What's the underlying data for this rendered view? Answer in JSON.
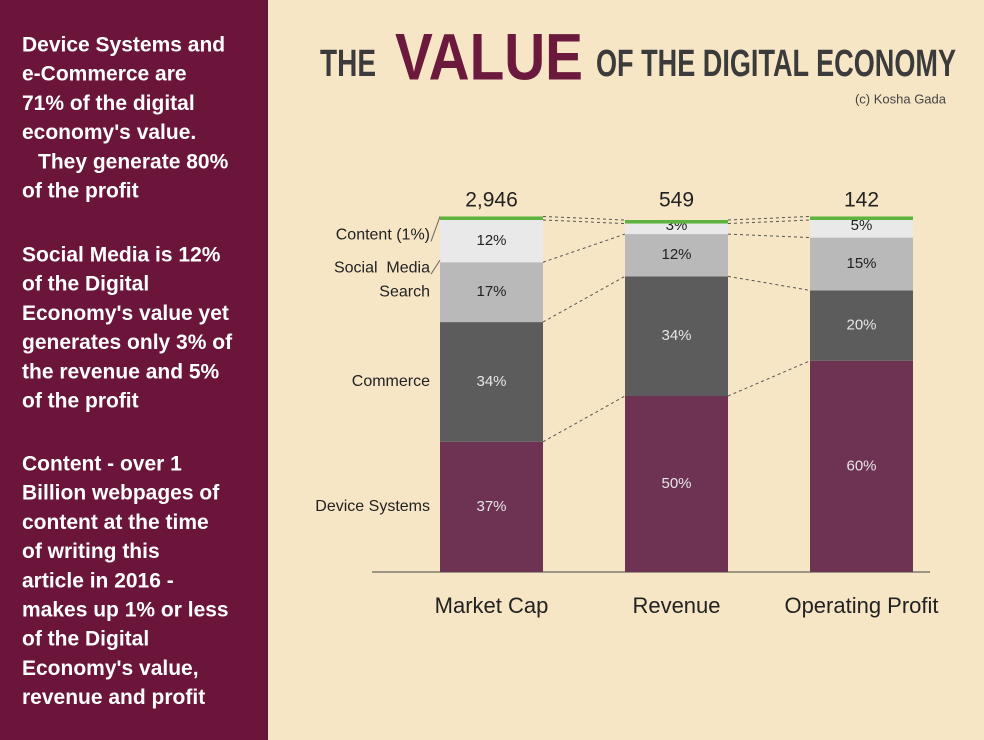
{
  "header": {
    "title_parts": [
      "THE",
      "VALUE",
      "OF THE DIGITAL ECONOMY"
    ],
    "credit": "(c) Kosha Gada"
  },
  "sidebar": {
    "paragraphs": [
      [
        "Device Systems and",
        "e-Commerce are",
        "71% of the digital",
        "economy's value.",
        "They generate 80%",
        "of the profit"
      ],
      [
        "Social Media is 12%",
        "of the Digital",
        "Economy's value yet",
        "generates only 3% of",
        "the revenue and 5%",
        "of the profit"
      ],
      [
        "Content - over 1",
        "Billion webpages of",
        "content at the time",
        "of writing this",
        "article in 2016 -",
        "makes up 1% or less",
        "of the Digital",
        "Economy's value,",
        "revenue and profit"
      ]
    ]
  },
  "chart_data": {
    "type": "stacked_bar",
    "categories": [
      "Market Cap",
      "Revenue",
      "Operating Profit"
    ],
    "totals": {
      "values": [
        2946,
        549,
        142
      ],
      "value_labels": [
        "2,946",
        "549",
        "142"
      ]
    },
    "series": [
      {
        "name": "Device Systems",
        "color": "#6e3352",
        "values": [
          37,
          50,
          60
        ],
        "value_labels": [
          "37%",
          "50%",
          "60%"
        ]
      },
      {
        "name": "Commerce",
        "color": "#5c5c5c",
        "values": [
          34,
          34,
          20
        ],
        "value_labels": [
          "34%",
          "34%",
          "20%"
        ]
      },
      {
        "name": "Search",
        "color": "#b9b9b9",
        "values": [
          17,
          12,
          15
        ],
        "value_labels": [
          "17%",
          "12%",
          "15%"
        ]
      },
      {
        "name": "Social  Media",
        "color": "#e9e9e9",
        "values": [
          12,
          3,
          5
        ],
        "value_labels": [
          "12%",
          "3%",
          "5%"
        ]
      },
      {
        "name": "Content (1%)",
        "color": "#5cb43c",
        "values": [
          1,
          1,
          1
        ]
      }
    ],
    "ylim": [
      0,
      100
    ]
  }
}
